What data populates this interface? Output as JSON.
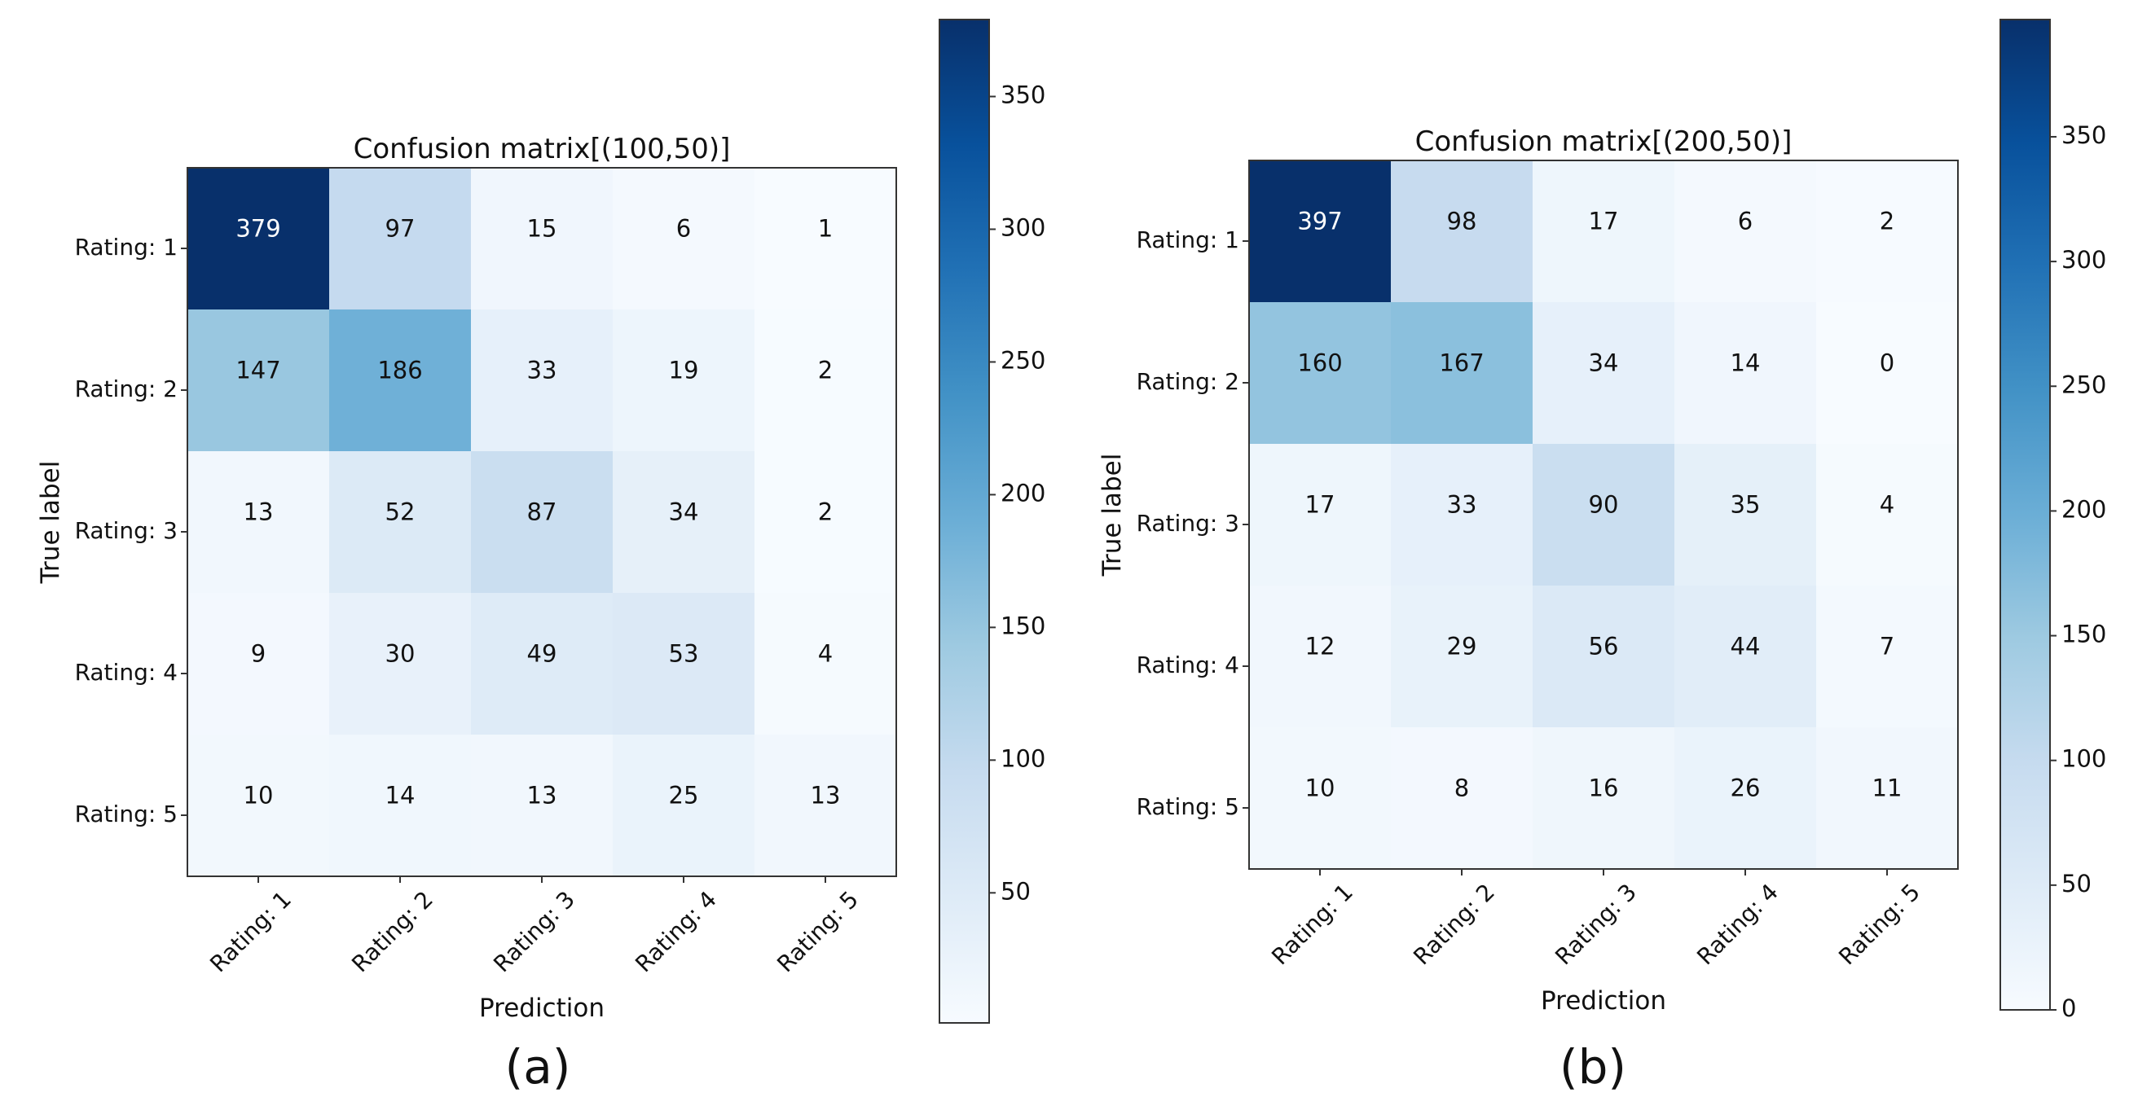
{
  "chart_data": [
    {
      "type": "heatmap",
      "title": "Confusion matrix[(100,50)]",
      "xlabel": "Prediction",
      "ylabel": "True label",
      "row_labels": [
        "Rating: 1",
        "Rating: 2",
        "Rating: 3",
        "Rating: 4",
        "Rating: 5"
      ],
      "col_labels": [
        "Rating: 1",
        "Rating: 2",
        "Rating: 3",
        "Rating: 4",
        "Rating: 5"
      ],
      "matrix": [
        [
          379,
          97,
          15,
          6,
          1
        ],
        [
          147,
          186,
          33,
          19,
          2
        ],
        [
          13,
          52,
          87,
          34,
          2
        ],
        [
          9,
          30,
          49,
          53,
          4
        ],
        [
          10,
          14,
          13,
          25,
          13
        ]
      ],
      "colorbar": {
        "min": 1,
        "max": 379,
        "ticks": [
          50,
          100,
          150,
          200,
          250,
          300,
          350
        ]
      },
      "colormap": "Blues",
      "subfigure_label": "(a)"
    },
    {
      "type": "heatmap",
      "title": "Confusion matrix[(200,50)]",
      "xlabel": "Prediction",
      "ylabel": "True label",
      "row_labels": [
        "Rating: 1",
        "Rating: 2",
        "Rating: 3",
        "Rating: 4",
        "Rating: 5"
      ],
      "col_labels": [
        "Rating: 1",
        "Rating: 2",
        "Rating: 3",
        "Rating: 4",
        "Rating: 5"
      ],
      "matrix": [
        [
          397,
          98,
          17,
          6,
          2
        ],
        [
          160,
          167,
          34,
          14,
          0
        ],
        [
          17,
          33,
          90,
          35,
          4
        ],
        [
          12,
          29,
          56,
          44,
          7
        ],
        [
          10,
          8,
          16,
          26,
          11
        ]
      ],
      "colorbar": {
        "min": 0,
        "max": 397,
        "ticks": [
          0,
          50,
          100,
          150,
          200,
          250,
          300,
          350
        ]
      },
      "colormap": "Blues",
      "subfigure_label": "(b)"
    }
  ]
}
